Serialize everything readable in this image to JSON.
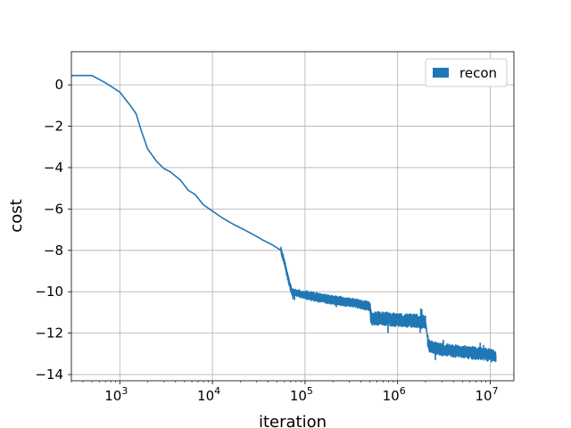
{
  "chart_data": {
    "type": "line",
    "xlabel": "iteration",
    "ylabel": "cost",
    "xscale": "log",
    "xlim": [
      300,
      18000000
    ],
    "ylim": [
      -14.3,
      1.6
    ],
    "x_ticks": [
      1000,
      10000,
      100000,
      1000000,
      10000000
    ],
    "x_tick_labels": [
      {
        "base": "10",
        "exp": "3"
      },
      {
        "base": "10",
        "exp": "4"
      },
      {
        "base": "10",
        "exp": "5"
      },
      {
        "base": "10",
        "exp": "6"
      },
      {
        "base": "10",
        "exp": "7"
      }
    ],
    "y_ticks": [
      0,
      -2,
      -4,
      -6,
      -8,
      -10,
      -12,
      -14
    ],
    "y_tick_labels": [
      "0",
      "−2",
      "−4",
      "−6",
      "−8",
      "−10",
      "−12",
      "−14"
    ],
    "grid": true,
    "legend": {
      "placement": "top-right",
      "entries": [
        "recon"
      ]
    },
    "series": [
      {
        "name": "recon",
        "color": "#1f77b4",
        "points": [
          [
            300,
            0.45
          ],
          [
            500,
            0.45
          ],
          [
            700,
            0.1
          ],
          [
            1000,
            -0.35
          ],
          [
            1300,
            -1.0
          ],
          [
            1500,
            -1.4
          ],
          [
            1700,
            -2.2
          ],
          [
            2000,
            -3.1
          ],
          [
            2500,
            -3.7
          ],
          [
            3000,
            -4.05
          ],
          [
            3500,
            -4.2
          ],
          [
            4500,
            -4.6
          ],
          [
            5500,
            -5.1
          ],
          [
            6500,
            -5.3
          ],
          [
            8000,
            -5.8
          ],
          [
            10000,
            -6.1
          ],
          [
            13000,
            -6.45
          ],
          [
            17000,
            -6.75
          ],
          [
            22000,
            -7.0
          ],
          [
            28000,
            -7.25
          ],
          [
            35000,
            -7.5
          ],
          [
            45000,
            -7.75
          ],
          [
            55000,
            -8.0
          ],
          [
            60000,
            -8.6
          ],
          [
            66000,
            -9.4
          ],
          [
            72000,
            -10.0
          ],
          [
            85000,
            -10.1
          ],
          [
            100000,
            -10.15
          ],
          [
            150000,
            -10.3
          ],
          [
            200000,
            -10.4
          ],
          [
            300000,
            -10.5
          ],
          [
            400000,
            -10.6
          ],
          [
            500000,
            -10.7
          ],
          [
            520000,
            -11.3
          ],
          [
            700000,
            -11.3
          ],
          [
            1000000,
            -11.35
          ],
          [
            1500000,
            -11.4
          ],
          [
            2000000,
            -11.45
          ],
          [
            2150000,
            -12.6
          ],
          [
            3000000,
            -12.8
          ],
          [
            5000000,
            -12.9
          ],
          [
            8000000,
            -13.0
          ],
          [
            11500000,
            -13.1
          ]
        ],
        "noise_bands": [
          {
            "x_range": [
              55000,
              100000
            ],
            "amplitude": 0.3
          },
          {
            "x_range": [
              100000,
              500000
            ],
            "amplitude": 0.4
          },
          {
            "x_range": [
              500000,
              2000000
            ],
            "amplitude": 0.6
          },
          {
            "x_range": [
              2100000,
              11500000
            ],
            "amplitude": 0.55
          }
        ]
      }
    ]
  }
}
